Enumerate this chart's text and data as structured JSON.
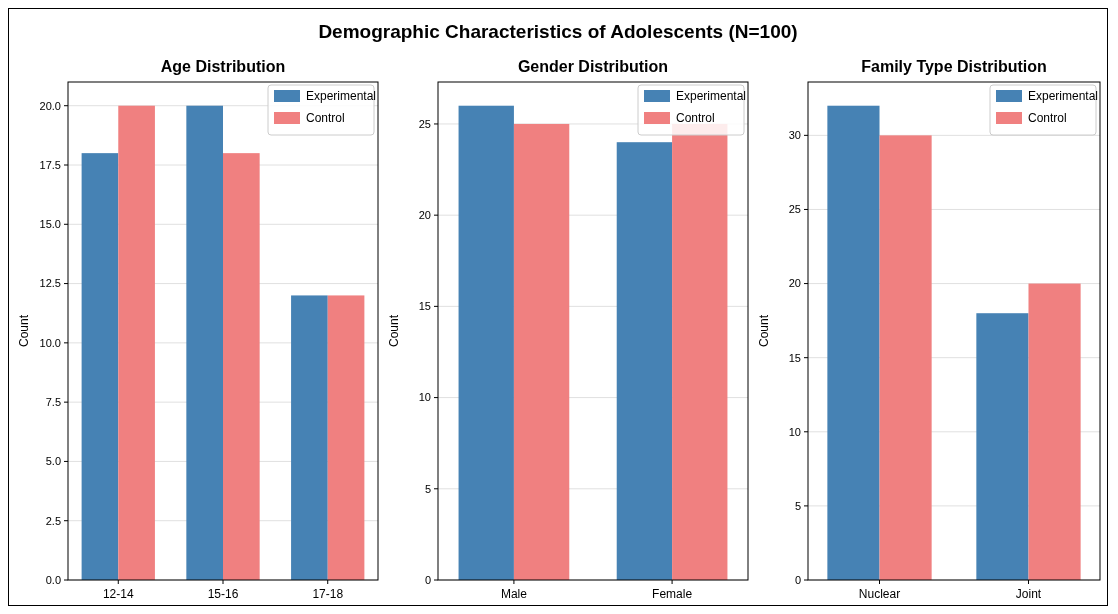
{
  "chart_data": [
    {
      "type": "bar",
      "title": "Age Distribution",
      "ylabel": "Count",
      "annotations": [
        "Demographic Characteristics of Adolescents (N=100)"
      ],
      "categories": [
        "12-14",
        "15-16",
        "17-18"
      ],
      "series": [
        {
          "name": "Experimental",
          "color": "#4682b4",
          "values": [
            18,
            20,
            12
          ]
        },
        {
          "name": "Control",
          "color": "#f08080",
          "values": [
            20,
            18,
            12
          ]
        }
      ],
      "ylim": [
        0,
        21
      ],
      "yticks": [
        {
          "value": 0,
          "label": "0.0"
        },
        {
          "value": 2.5,
          "label": "2.5"
        },
        {
          "value": 5,
          "label": "5.0"
        },
        {
          "value": 7.5,
          "label": "7.5"
        },
        {
          "value": 10,
          "label": "10.0"
        },
        {
          "value": 12.5,
          "label": "12.5"
        },
        {
          "value": 15,
          "label": "15.0"
        },
        {
          "value": 17.5,
          "label": "17.5"
        },
        {
          "value": 20,
          "label": "20.0"
        }
      ],
      "grid": "y",
      "legend": "top right"
    },
    {
      "type": "bar",
      "title": "Gender Distribution",
      "ylabel": "Count",
      "categories": [
        "Male",
        "Female"
      ],
      "series": [
        {
          "name": "Experimental",
          "color": "#4682b4",
          "values": [
            26,
            24
          ]
        },
        {
          "name": "Control",
          "color": "#f08080",
          "values": [
            25,
            25
          ]
        }
      ],
      "ylim": [
        0,
        27.3
      ],
      "yticks": [
        0,
        5,
        10,
        15,
        20,
        25
      ],
      "grid": "y",
      "legend": "top right"
    },
    {
      "type": "bar",
      "title": "Family Type Distribution",
      "ylabel": "Count",
      "categories": [
        "Nuclear",
        "Joint"
      ],
      "series": [
        {
          "name": "Experimental",
          "color": "#4682b4",
          "values": [
            32,
            18
          ]
        },
        {
          "name": "Control",
          "color": "#f08080",
          "values": [
            30,
            20
          ]
        }
      ],
      "ylim": [
        0,
        33.6
      ],
      "yticks": [
        0,
        5,
        10,
        15,
        20,
        25,
        30
      ],
      "grid": "y",
      "legend": "top right"
    }
  ]
}
